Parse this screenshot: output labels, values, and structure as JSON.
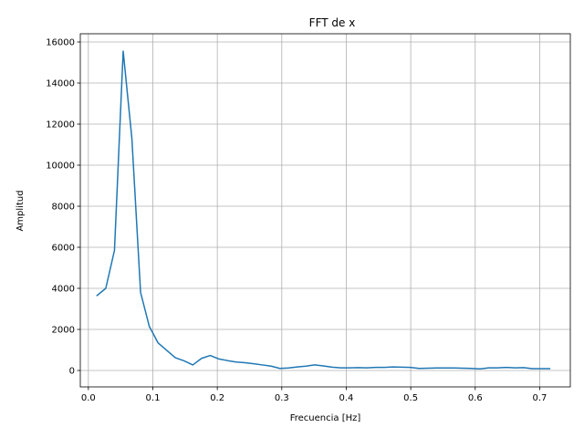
{
  "chart_data": {
    "type": "line",
    "title": "FFT de x",
    "xlabel": "Frecuencia [Hz]",
    "ylabel": "Amplitud",
    "xlim": [
      -0.0125,
      0.7475
    ],
    "ylim": [
      -800,
      16400
    ],
    "xticks": [
      0.0,
      0.1,
      0.2,
      0.3,
      0.4,
      0.5,
      0.6,
      0.7
    ],
    "xtick_labels": [
      "0.0",
      "0.1",
      "0.2",
      "0.3",
      "0.4",
      "0.5",
      "0.6",
      "0.7"
    ],
    "yticks": [
      0,
      2000,
      4000,
      6000,
      8000,
      10000,
      12000,
      14000,
      16000
    ],
    "ytick_labels": [
      "0",
      "2000",
      "4000",
      "6000",
      "8000",
      "10000",
      "12000",
      "14000",
      "16000"
    ],
    "grid": true,
    "series": [
      {
        "color": "#1f77b4",
        "x": [
          0.0135,
          0.027,
          0.0405,
          0.054,
          0.0675,
          0.081,
          0.0945,
          0.108,
          0.1215,
          0.135,
          0.1485,
          0.162,
          0.1755,
          0.189,
          0.2025,
          0.216,
          0.2295,
          0.243,
          0.2565,
          0.27,
          0.2835,
          0.297,
          0.3105,
          0.324,
          0.3375,
          0.351,
          0.3645,
          0.378,
          0.3915,
          0.405,
          0.4185,
          0.432,
          0.4455,
          0.459,
          0.4725,
          0.486,
          0.4995,
          0.513,
          0.5265,
          0.54,
          0.5535,
          0.567,
          0.5805,
          0.594,
          0.6075,
          0.621,
          0.6345,
          0.648,
          0.6615,
          0.675,
          0.6885,
          0.702,
          0.7155
        ],
        "y": [
          3650,
          4000,
          5850,
          15550,
          11300,
          3800,
          2150,
          1350,
          980,
          620,
          470,
          270,
          590,
          730,
          560,
          480,
          410,
          380,
          330,
          270,
          210,
          100,
          120,
          170,
          210,
          270,
          220,
          160,
          130,
          130,
          140,
          130,
          150,
          150,
          170,
          160,
          150,
          100,
          110,
          120,
          120,
          120,
          110,
          100,
          80,
          130,
          130,
          150,
          130,
          140,
          90,
          90,
          90
        ]
      }
    ]
  }
}
